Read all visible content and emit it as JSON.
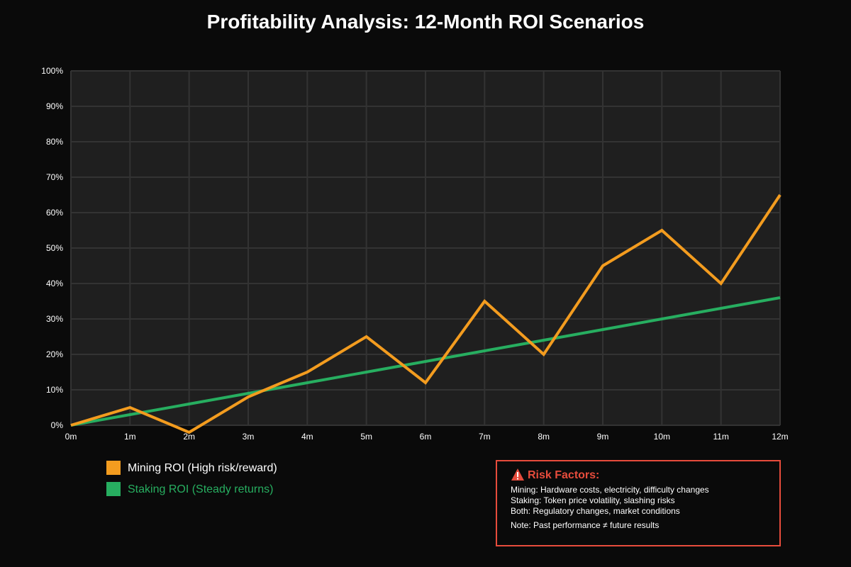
{
  "chart_data": {
    "type": "line",
    "title": "Profitability Analysis: 12-Month ROI Scenarios",
    "xlabel": "",
    "ylabel": "",
    "categories": [
      "0m",
      "1m",
      "2m",
      "3m",
      "4m",
      "5m",
      "6m",
      "7m",
      "8m",
      "9m",
      "10m",
      "11m",
      "12m"
    ],
    "ylim": [
      0,
      100
    ],
    "yticks": [
      0,
      10,
      20,
      30,
      40,
      50,
      60,
      70,
      80,
      90,
      100
    ],
    "ytick_labels": [
      "0%",
      "10%",
      "20%",
      "30%",
      "40%",
      "50%",
      "60%",
      "70%",
      "80%",
      "90%",
      "100%"
    ],
    "grid": true,
    "series": [
      {
        "name": "Mining ROI (High risk/reward)",
        "color": "#f39c1f",
        "values": [
          0,
          5,
          -2,
          8,
          15,
          25,
          12,
          35,
          20,
          45,
          55,
          40,
          65
        ]
      },
      {
        "name": "Staking ROI (Steady returns)",
        "color": "#27ae60",
        "values": [
          0,
          3,
          6,
          9,
          12,
          15,
          18,
          21,
          24,
          27,
          30,
          33,
          36
        ]
      }
    ],
    "legend_position": "bottom-left"
  },
  "colors": {
    "background": "#0a0a0a",
    "plot_background": "#1f1f1f",
    "grid": "#333333",
    "risk_accent": "#e74c3c",
    "legend_staking_text": "#27ae60",
    "legend_mining_text": "#ffffff"
  },
  "risk_box": {
    "icon": "warning-icon",
    "title": "Risk Factors:",
    "lines": [
      "Mining: Hardware costs, electricity, difficulty changes",
      "Staking: Token price volatility, slashing risks",
      "Both: Regulatory changes, market conditions"
    ],
    "note": "Note: Past performance ≠ future results"
  }
}
